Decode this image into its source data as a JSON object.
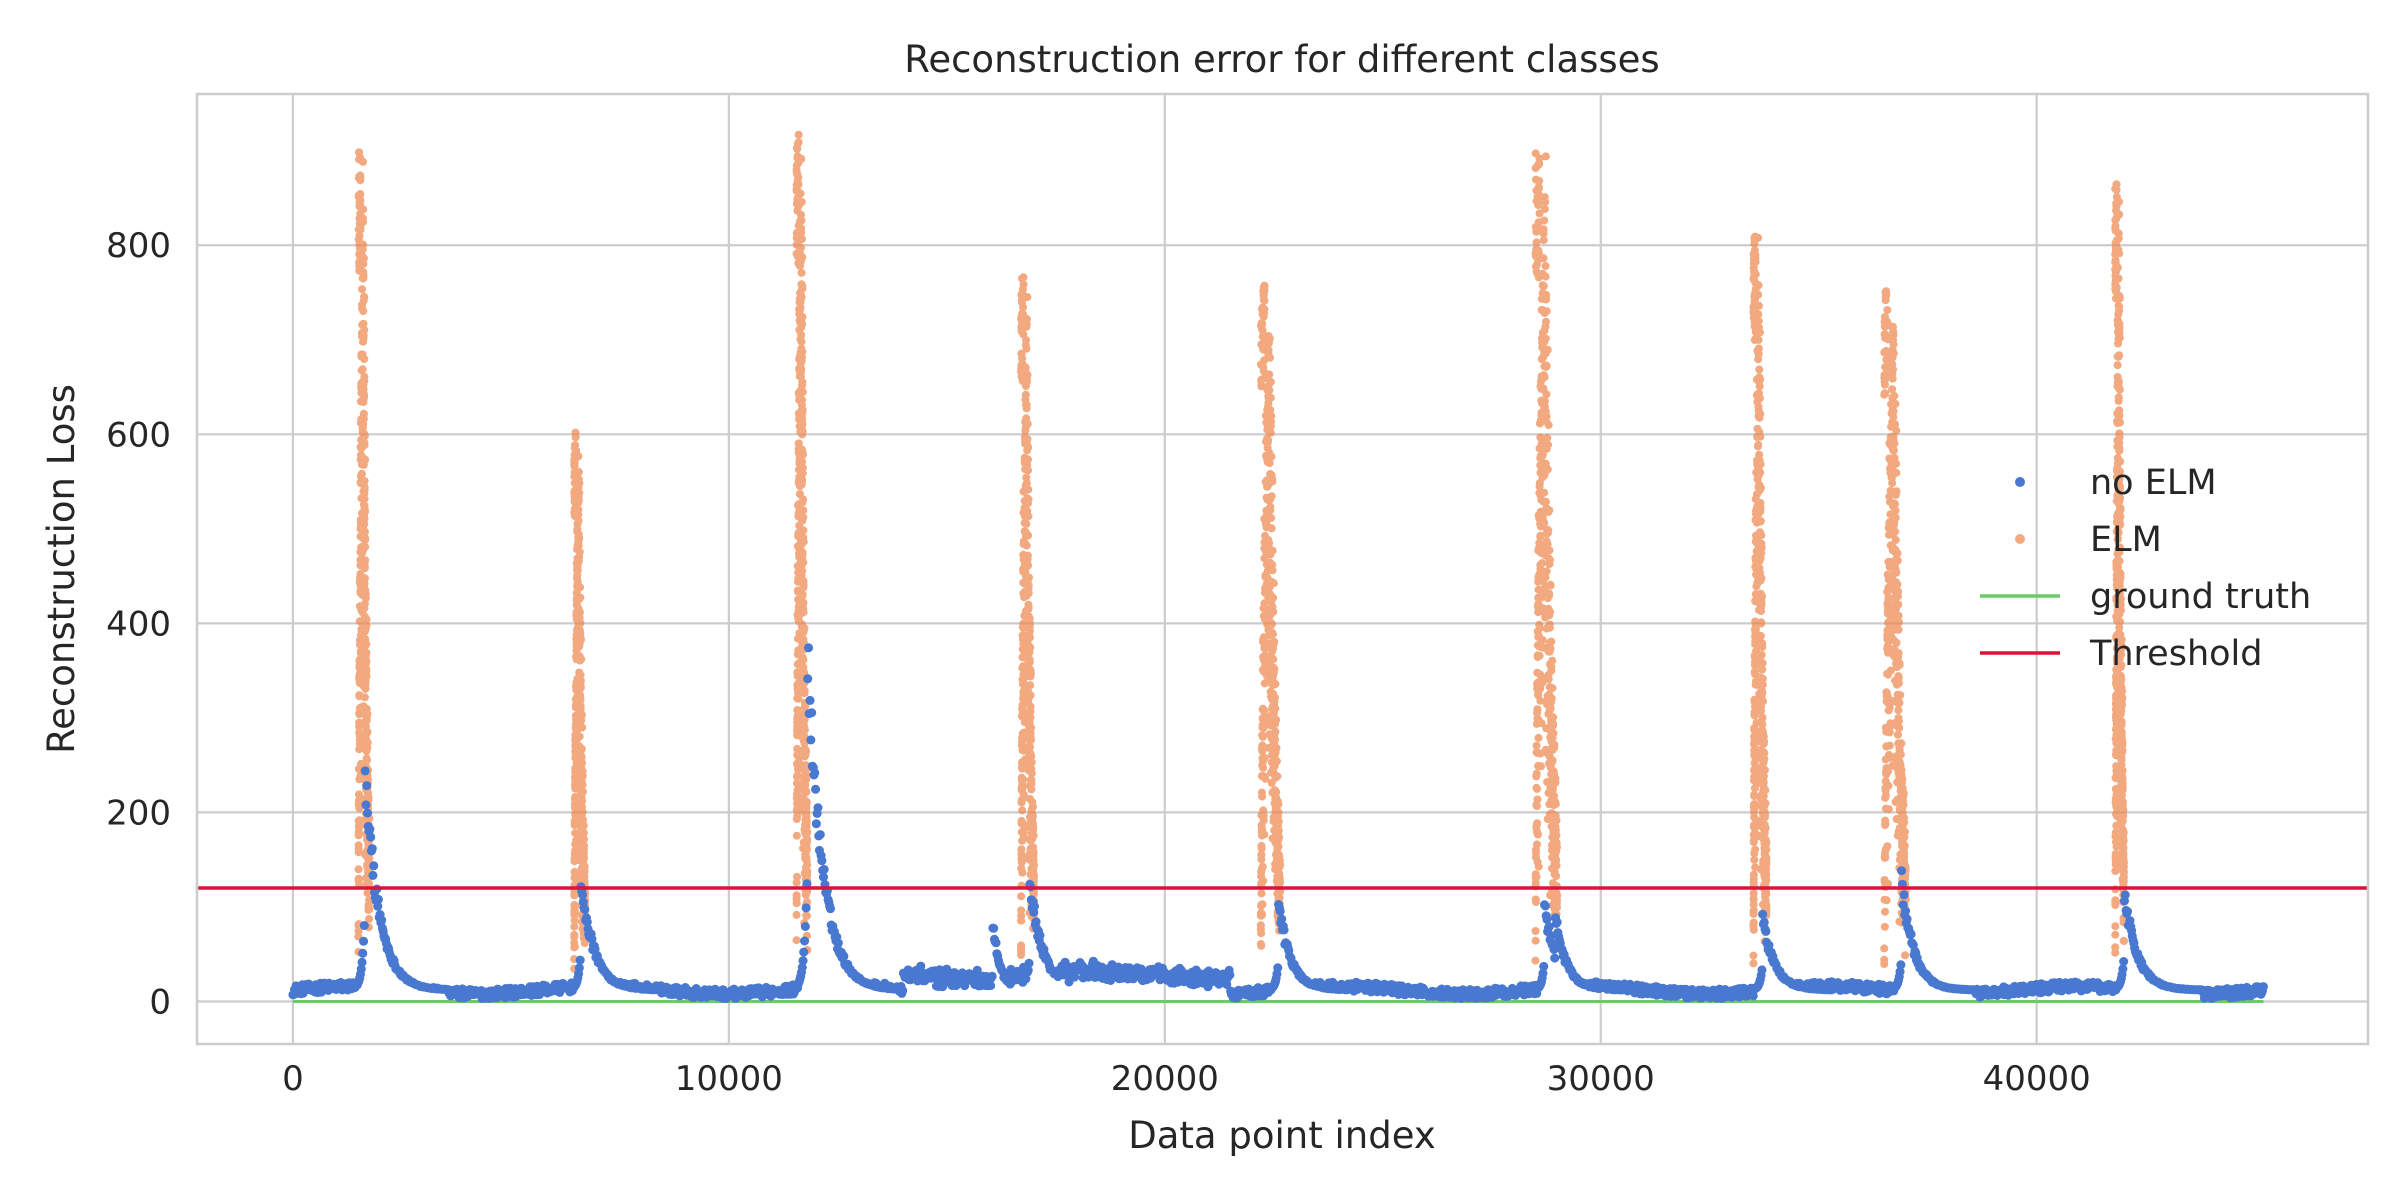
{
  "chart_data": {
    "type": "scatter",
    "title": "Reconstruction error for different classes",
    "xlabel": "Data point index",
    "ylabel": "Reconstruction Loss",
    "xlim": [
      -2200,
      47600
    ],
    "ylim": [
      -45,
      960
    ],
    "xticks": [
      0,
      10000,
      20000,
      30000,
      40000
    ],
    "yticks": [
      0,
      200,
      400,
      600,
      800
    ],
    "grid": true,
    "legend_position": "center-right",
    "background": "#ffffff",
    "grid_color": "#cccccc",
    "x_extent": [
      0,
      45200
    ],
    "baseline_no_elm": 12,
    "threshold": 120,
    "series": [
      {
        "name": "no ELM",
        "kind": "points",
        "color": "#4878d0",
        "spikes": [
          {
            "x": 1650,
            "width": 320,
            "peak": 270
          },
          {
            "x": 6600,
            "width": 300,
            "peak": 145
          },
          {
            "x": 11800,
            "width": 350,
            "peak": 405
          },
          {
            "x": 16050,
            "width": 160,
            "peak": 95
          },
          {
            "x": 16900,
            "width": 300,
            "peak": 140
          },
          {
            "x": 22600,
            "width": 280,
            "peak": 115
          },
          {
            "x": 28700,
            "width": 260,
            "peak": 118
          },
          {
            "x": 28950,
            "width": 260,
            "peak": 100
          },
          {
            "x": 33700,
            "width": 280,
            "peak": 100
          },
          {
            "x": 36900,
            "width": 280,
            "peak": 140
          },
          {
            "x": 42000,
            "width": 300,
            "peak": 130
          }
        ]
      },
      {
        "name": "ELM",
        "kind": "points",
        "color": "#ee854a",
        "events": [
          {
            "x_start": 1500,
            "x_end": 1750,
            "peak": 905
          },
          {
            "x_start": 6450,
            "x_end": 6700,
            "peak": 602
          },
          {
            "x_start": 11550,
            "x_end": 11800,
            "peak": 918
          },
          {
            "x_start": 16700,
            "x_end": 17000,
            "peak": 772
          },
          {
            "x_start": 22200,
            "x_end": 22650,
            "peak": 758
          },
          {
            "x_start": 28500,
            "x_end": 29000,
            "peak": 900
          },
          {
            "x_start": 33500,
            "x_end": 33800,
            "peak": 815
          },
          {
            "x_start": 36500,
            "x_end": 37000,
            "peak": 755
          },
          {
            "x_start": 41800,
            "x_end": 42000,
            "peak": 872
          }
        ]
      },
      {
        "name": "ground truth",
        "kind": "line",
        "color": "#6acc64",
        "y": 0
      },
      {
        "name": "Threshold",
        "kind": "hline",
        "color": "#dc143c",
        "y": 120
      }
    ]
  }
}
